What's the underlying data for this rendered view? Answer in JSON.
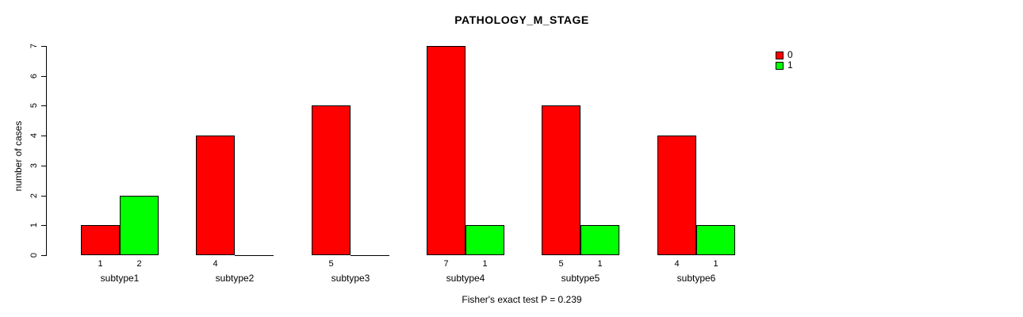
{
  "chart_data": {
    "type": "bar",
    "title": "PATHOLOGY_M_STAGE",
    "ylabel": "number of cases",
    "xlabel": "",
    "footer": "Fisher's exact test P = 0.239",
    "categories": [
      "subtype1",
      "subtype2",
      "subtype3",
      "subtype4",
      "subtype5",
      "subtype6"
    ],
    "series": [
      {
        "name": "0",
        "color": "#ff0000",
        "values": [
          1,
          4,
          5,
          7,
          5,
          4
        ]
      },
      {
        "name": "1",
        "color": "#00ff00",
        "values": [
          2,
          0,
          0,
          1,
          1,
          1
        ]
      }
    ],
    "bar_value_labels_shown_for_nonzero_only": true,
    "ylim": [
      0,
      7
    ],
    "yticks": [
      "0",
      "1",
      "2",
      "3",
      "4",
      "5",
      "6",
      "7"
    ],
    "grid": "off",
    "legend_position": "top-right",
    "background_color": "#ffffff",
    "axis_color": "#000000"
  }
}
